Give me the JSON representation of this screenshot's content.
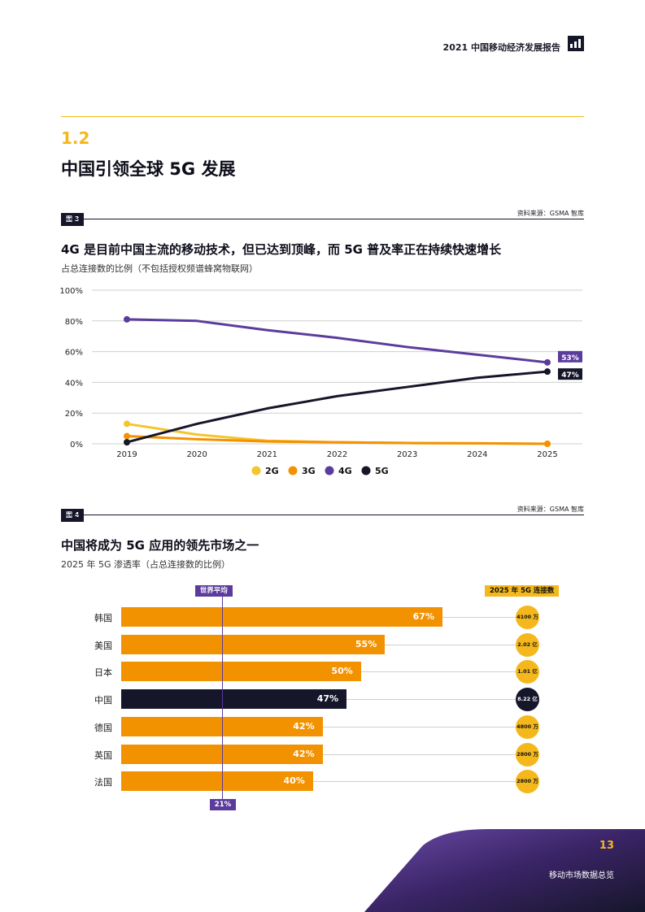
{
  "header": {
    "report_title": "2021 中国移动经济发展报告"
  },
  "section": {
    "number": "1.2",
    "title": "中国引领全球 5G 发展"
  },
  "figure3": {
    "tag": "图 3",
    "source": "资料来源：GSMA 智库",
    "title": "4G 是目前中国主流的移动技术，但已达到顶峰，而 5G 普及率正在持续快速增长",
    "subtitle": "占总连接数的比例（不包括授权频谱蜂窝物联网）"
  },
  "chart_data": [
    {
      "type": "line",
      "title": "4G 是目前中国主流的移动技术，但已达到顶峰，而 5G 普及率正在持续快速增长",
      "ylabel": "占总连接数的比例",
      "x": [
        2019,
        2020,
        2021,
        2022,
        2023,
        2024,
        2025
      ],
      "x_labels": [
        "2019",
        "2020",
        "2021",
        "2022",
        "2023",
        "2024",
        "2025"
      ],
      "ylim": [
        0,
        100
      ],
      "y_ticks": [
        0,
        20,
        40,
        60,
        80,
        100
      ],
      "y_tick_labels": [
        "0%",
        "20%",
        "40%",
        "60%",
        "80%",
        "100%"
      ],
      "legend_position": "bottom",
      "series": [
        {
          "name": "2G",
          "color": "#f5c52e",
          "values": [
            13,
            6,
            2,
            1,
            0.5,
            0.3,
            0
          ]
        },
        {
          "name": "3G",
          "color": "#f39200",
          "values": [
            5,
            3,
            1.5,
            1,
            0.5,
            0.3,
            0
          ]
        },
        {
          "name": "4G",
          "color": "#5b3c9c",
          "values": [
            81,
            80,
            74,
            69,
            63,
            58,
            53
          ]
        },
        {
          "name": "5G",
          "color": "#16162a",
          "values": [
            1,
            13,
            23,
            31,
            37,
            43,
            47
          ]
        }
      ],
      "end_labels": {
        "4G": "53%",
        "5G": "47%"
      }
    },
    {
      "type": "bar",
      "orientation": "horizontal",
      "title": "中国将成为 5G 应用的领先市场之一",
      "categories": [
        "韩国",
        "美国",
        "日本",
        "中国",
        "德国",
        "英国",
        "法国"
      ],
      "values": [
        67,
        55,
        50,
        47,
        42,
        42,
        40
      ],
      "value_labels": [
        "67%",
        "55%",
        "50%",
        "47%",
        "42%",
        "42%",
        "40%"
      ],
      "highlight": "中国",
      "xlim": [
        0,
        100
      ],
      "reference_line": {
        "label": "世界平均",
        "value": 21,
        "value_label": "21%"
      },
      "connections_header": "2025 年 5G 连接数",
      "connections": [
        "4100 万",
        "2.02 亿",
        "1.01 亿",
        "8.22 亿",
        "4800 万",
        "2800 万",
        "2800 万"
      ]
    }
  ],
  "figure4": {
    "tag": "图 4",
    "source": "资料来源：GSMA 智库",
    "title": "中国将成为 5G 应用的领先市场之一",
    "subtitle": "2025 年 5G 渗透率（占总连接数的比例）"
  },
  "colors": {
    "gold": "#f5b81c",
    "orange": "#f39200",
    "purple": "#5b3c9c",
    "navy": "#16162a"
  },
  "footer": {
    "page_number": "13",
    "section_name": "移动市场数据总览"
  }
}
